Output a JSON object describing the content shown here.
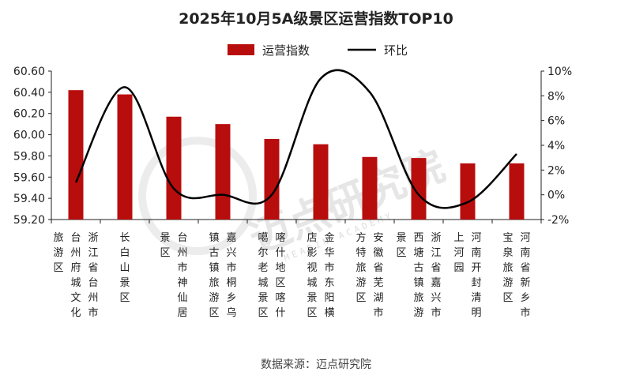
{
  "chart_data": {
    "type": "bar",
    "title": "2025年10月5A级景区运营指数TOP10",
    "legend": [
      "运营指数",
      "环比"
    ],
    "legend_position": "top",
    "categories": [
      "浙江省台州市台州府城文化旅游区",
      "长白山景区",
      "台州市神仙居景区",
      "嘉兴市桐乡乌镇古镇旅游区",
      "喀什地区喀什噶尔老城景区",
      "金华市东阳横店影视城景区",
      "安徽省芜湖市方特旅游区",
      "浙江省嘉兴市西塘古镇旅游景区",
      "河南开封清明上河园",
      "河南省新乡市宝泉旅游区"
    ],
    "category_columns": [
      [
        [
          "浙江省台州市",
          "台州府城文化",
          "旅游区"
        ]
      ],
      [
        [
          "长白山景区"
        ]
      ],
      [
        [
          "台州市神仙居",
          "景区"
        ]
      ],
      [
        [
          "嘉兴市桐乡乌",
          "镇古镇旅游区"
        ]
      ],
      [
        [
          "喀什地区喀什",
          "噶尔老城景区"
        ]
      ],
      [
        [
          "金华市东阳横",
          "店影视城景区"
        ]
      ],
      [
        [
          "安徽省芜湖市",
          "方特旅游区"
        ]
      ],
      [
        [
          "浙江省嘉兴市",
          "西塘古镇旅游",
          "景区"
        ]
      ],
      [
        [
          "河南开封清明",
          "上河园"
        ]
      ],
      [
        [
          "河南省新乡市",
          "宝泉旅游区"
        ]
      ]
    ],
    "series": [
      {
        "name": "运营指数",
        "type": "bar",
        "axis": "left",
        "color": "#b80d0d",
        "values": [
          60.42,
          60.38,
          60.17,
          60.1,
          59.96,
          59.91,
          59.79,
          59.78,
          59.73,
          59.73
        ]
      },
      {
        "name": "环比",
        "type": "line",
        "axis": "right",
        "color": "#000000",
        "values": [
          1.0,
          8.7,
          0.5,
          0.0,
          0.0,
          9.4,
          8.3,
          0.0,
          -0.6,
          3.3
        ]
      }
    ],
    "y_left": {
      "min": 59.2,
      "max": 60.6,
      "ticks": [
        "59.20",
        "59.40",
        "59.60",
        "59.80",
        "60.00",
        "60.20",
        "60.40",
        "60.60"
      ]
    },
    "y_right": {
      "min": -2,
      "max": 10,
      "ticks": [
        "-2%",
        "0%",
        "2%",
        "4%",
        "6%",
        "8%",
        "10%"
      ]
    },
    "grid": false
  },
  "source": "数据来源：迈点研究院",
  "watermark": {
    "text": "迈点研究院",
    "sub": "MEADIN ACADEMY"
  }
}
